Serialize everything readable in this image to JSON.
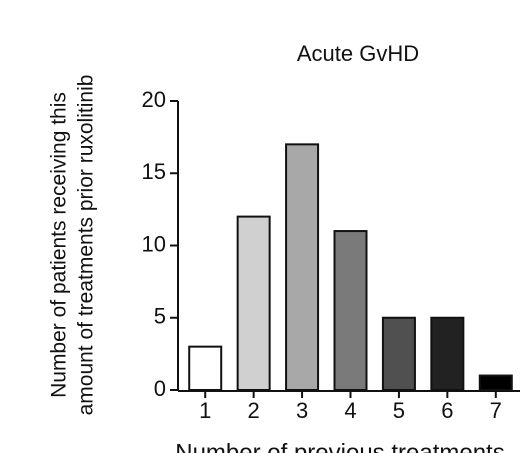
{
  "chart_data": {
    "type": "bar",
    "title": "Acute GvHD",
    "ylabel": [
      "Number of patients receiving this",
      "amount of treatments prior ruxolitinib"
    ],
    "xlabel": "Number of previous treatments",
    "categories": [
      "1",
      "2",
      "3",
      "4",
      "5",
      "6",
      "7"
    ],
    "values": [
      3,
      12,
      17,
      11,
      5,
      5,
      1
    ],
    "colors": [
      "#ffffff",
      "#d0d0d0",
      "#a8a8a8",
      "#7a7a7a",
      "#505050",
      "#222222",
      "#000000"
    ],
    "ylim": [
      0,
      20
    ],
    "yticks": [
      0,
      5,
      10,
      15,
      20
    ]
  }
}
